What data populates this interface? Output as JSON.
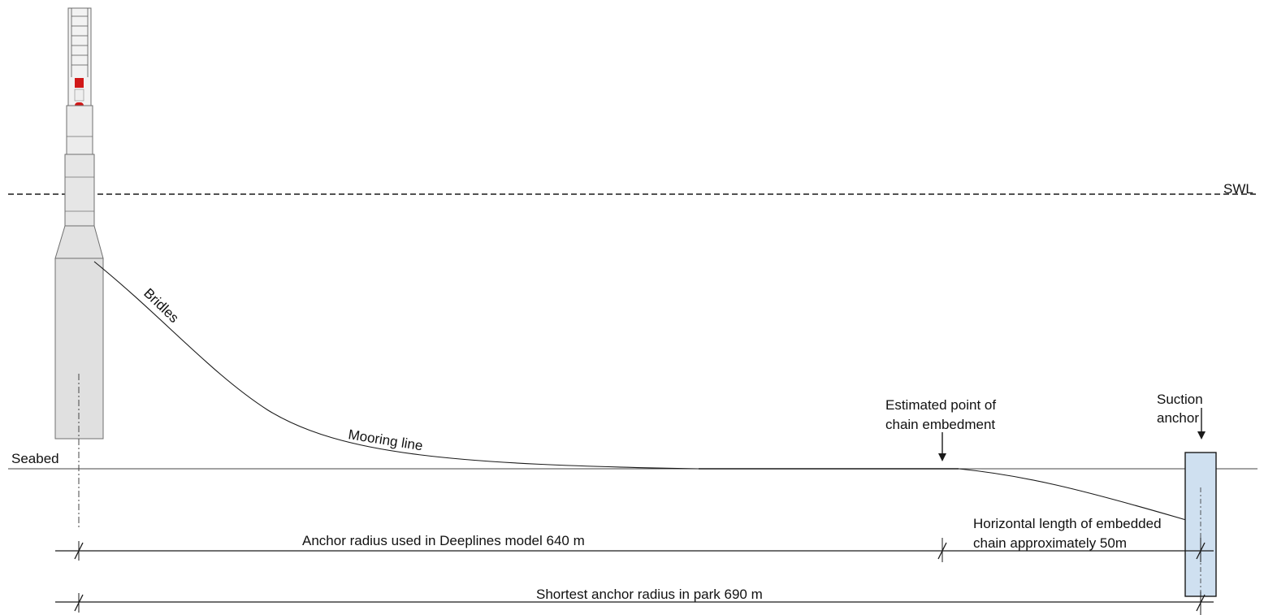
{
  "labels": {
    "swl": "SWL",
    "seabed": "Seabed",
    "bridles": "Bridles",
    "mooring_line": "Mooring line",
    "embedment_line1": "Estimated point of",
    "embedment_line2": "chain embedment",
    "anchor_line1": "Suction",
    "anchor_line2": "anchor",
    "embedded_len_line1": "Horizontal length of embedded",
    "embedded_len_line2": "chain approximately 50m",
    "anchor_radius_model": "Anchor radius used in Deeplines model 640 m",
    "shortest_radius": "Shortest anchor radius in park 690 m"
  },
  "colors": {
    "line": "#1a1a1a",
    "tower_fill": "#e4e4e4",
    "tower_stroke": "#6f6f6f",
    "aviation_red": "#d01818",
    "anchor_fill": "#cfe0f0",
    "anchor_stroke": "#1a1a1a"
  }
}
